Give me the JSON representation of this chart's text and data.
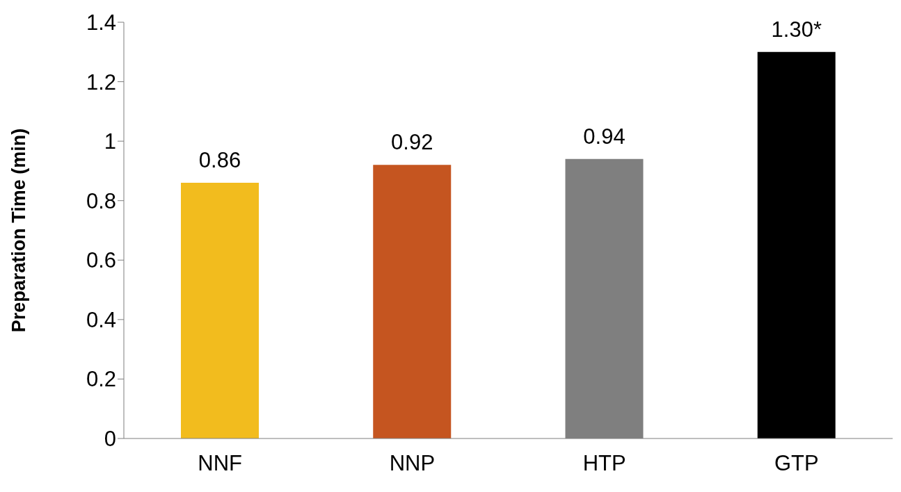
{
  "chart_data": {
    "type": "bar",
    "ylabel": "Preparation Time (min)",
    "categories": [
      "NNF",
      "NNP",
      "HTP",
      "GTP"
    ],
    "values": [
      0.86,
      0.92,
      0.94,
      1.3
    ],
    "colors": [
      "#f2bc1e",
      "#c55520",
      "#7f7f7f",
      "#000000"
    ],
    "value_labels": [
      "0.86",
      "0.92",
      "0.94",
      "1.30*"
    ],
    "ylim": [
      0,
      1.4
    ],
    "yticks": [
      0,
      0.2,
      0.4,
      0.6,
      0.8,
      1,
      1.2,
      1.4
    ],
    "grid": false,
    "legend": false
  }
}
